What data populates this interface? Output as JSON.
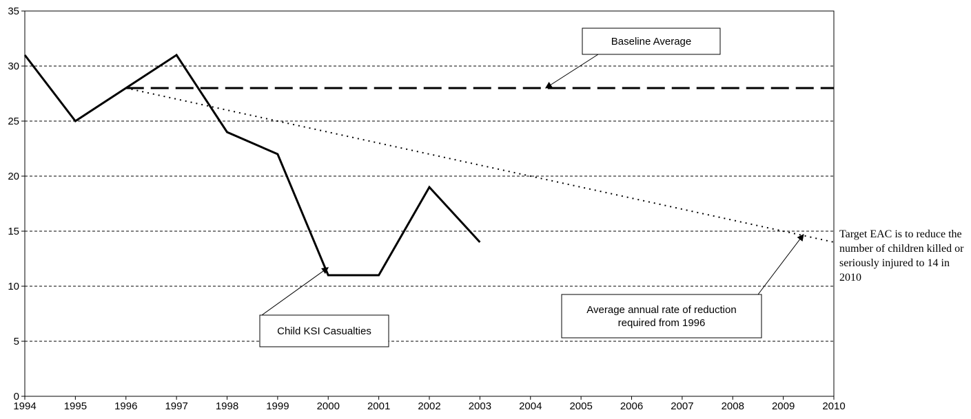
{
  "chart_data": {
    "type": "line",
    "x": [
      1994,
      1995,
      1996,
      1997,
      1998,
      1999,
      2000,
      2001,
      2002,
      2003,
      2004,
      2005,
      2006,
      2007,
      2008,
      2009,
      2010
    ],
    "xlim": [
      1994,
      2010
    ],
    "ylim": [
      0,
      35
    ],
    "yticks": [
      0,
      5,
      10,
      15,
      20,
      25,
      30,
      35
    ],
    "grid": "horizontal-dashed",
    "series": [
      {
        "name": "Child KSI Casualties",
        "style": "solid",
        "color": "#000000",
        "points": [
          [
            1994,
            31
          ],
          [
            1995,
            25
          ],
          [
            1996,
            28
          ],
          [
            1997,
            31
          ],
          [
            1998,
            24
          ],
          [
            1999,
            22
          ],
          [
            2000,
            11
          ],
          [
            2001,
            11
          ],
          [
            2002,
            19
          ],
          [
            2003,
            14
          ]
        ]
      },
      {
        "name": "Baseline Average",
        "style": "long-dash",
        "color": "#000000",
        "points": [
          [
            1996,
            28
          ],
          [
            2010,
            28
          ]
        ]
      },
      {
        "name": "Average annual rate of reduction required from 1996",
        "style": "dotted",
        "color": "#000000",
        "points": [
          [
            1996,
            28
          ],
          [
            2010,
            14
          ]
        ]
      }
    ],
    "annotations": [
      {
        "id": "baseline",
        "text": [
          "Baseline Average"
        ],
        "target": [
          2004.3,
          28
        ]
      },
      {
        "id": "ksi",
        "text": [
          "Child KSI Casualties"
        ],
        "target": [
          2000.0,
          11.7
        ]
      },
      {
        "id": "reduction",
        "text": [
          "Average annual rate of reduction",
          "required from 1996"
        ],
        "target": [
          2009.4,
          14.7
        ]
      }
    ],
    "side_note": "Target  EAC is to reduce the number of children killed or seriously injured to 14 in 2010"
  }
}
